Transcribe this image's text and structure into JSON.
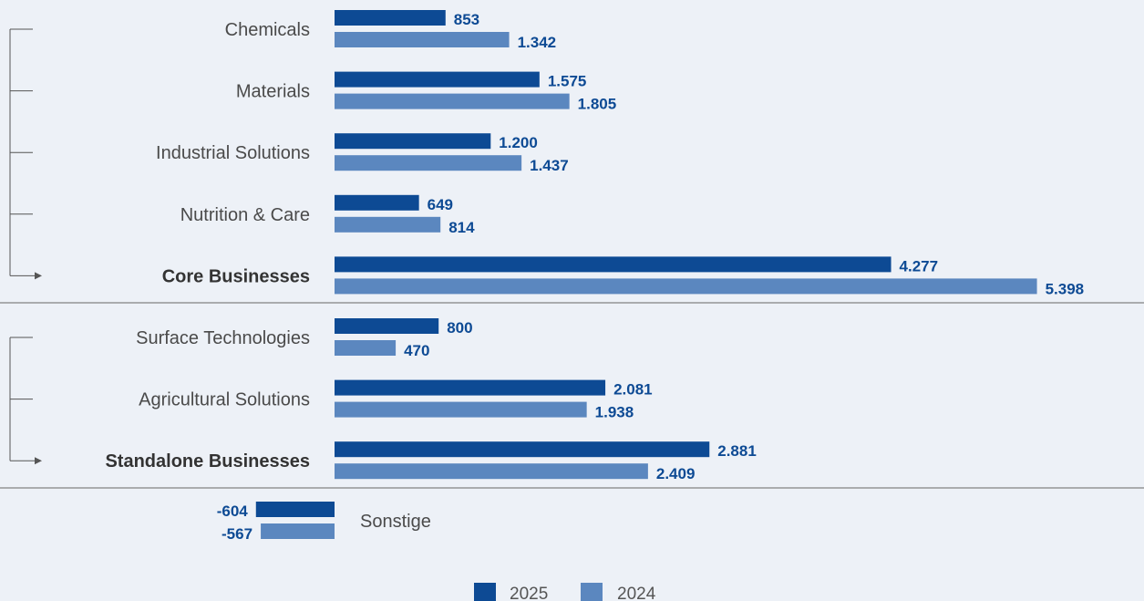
{
  "colors": {
    "series_2025": "#0d4a94",
    "series_2024": "#5b87bf",
    "background": "#edf1f7"
  },
  "chart_data": {
    "type": "bar",
    "orientation": "horizontal",
    "legend": [
      "2025",
      "2024"
    ],
    "legend_position": "bottom",
    "groups": [
      {
        "categories": [
          {
            "label": "Chemicals",
            "bold": false,
            "v2025": 853,
            "v2024": 1342,
            "t2025": "853",
            "t2024": "1.342"
          },
          {
            "label": "Materials",
            "bold": false,
            "v2025": 1575,
            "v2024": 1805,
            "t2025": "1.575",
            "t2024": "1.805"
          },
          {
            "label": "Industrial Solutions",
            "bold": false,
            "v2025": 1200,
            "v2024": 1437,
            "t2025": "1.200",
            "t2024": "1.437"
          },
          {
            "label": "Nutrition & Care",
            "bold": false,
            "v2025": 649,
            "v2024": 814,
            "t2025": "649",
            "t2024": "814"
          },
          {
            "label": "Core Businesses",
            "bold": true,
            "v2025": 4277,
            "v2024": 5398,
            "t2025": "4.277",
            "t2024": "5.398"
          }
        ]
      },
      {
        "categories": [
          {
            "label": "Surface Technologies",
            "bold": false,
            "v2025": 800,
            "v2024": 470,
            "t2025": "800",
            "t2024": "470"
          },
          {
            "label": "Agricultural Solutions",
            "bold": false,
            "v2025": 2081,
            "v2024": 1938,
            "t2025": "2.081",
            "t2024": "1.938"
          },
          {
            "label": "Standalone Businesses",
            "bold": true,
            "v2025": 2881,
            "v2024": 2409,
            "t2025": "2.881",
            "t2024": "2.409"
          }
        ]
      }
    ],
    "other": {
      "label": "Sonstige",
      "v2025": -604,
      "v2024": -567,
      "t2025": "-604",
      "t2024": "-567"
    }
  }
}
